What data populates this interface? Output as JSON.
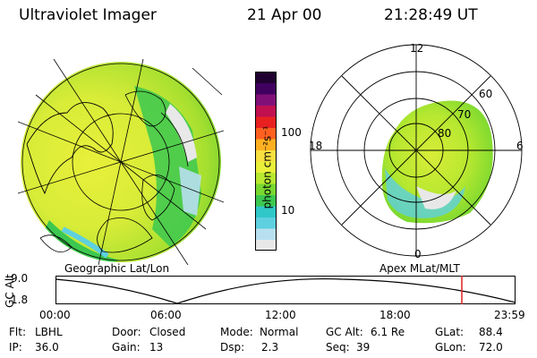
{
  "header": {
    "instrument": "Ultraviolet Imager",
    "date": "21 Apr 00",
    "time": "21:28:49 UT"
  },
  "colorbar": {
    "unit_label": "photon cm⁻²s⁻¹",
    "ticks": [
      {
        "value": 100,
        "label": "100"
      },
      {
        "value": 10,
        "label": "10"
      }
    ],
    "scale": "log",
    "colors": [
      "#e8e8e8",
      "#b8dff0",
      "#5ed0e0",
      "#30c8c8",
      "#3cc850",
      "#78d830",
      "#b8e830",
      "#e8f03a",
      "#f8e040",
      "#ffb020",
      "#ff6020",
      "#e82020",
      "#c01050",
      "#801078",
      "#400060",
      "#200030"
    ]
  },
  "left_map": {
    "projection_label": "Geographic Lat/Lon"
  },
  "right_map": {
    "projection_label": "Apex MLat/MLT",
    "mlt_labels": {
      "top": "12",
      "right": "6",
      "bottom": "0",
      "left": "18"
    },
    "lat_labels": [
      "60",
      "70",
      "80"
    ]
  },
  "timeline": {
    "axis_label": "GC Alt",
    "y_ticks": [
      "9.0",
      "1.8"
    ],
    "x_ticks": [
      "00:00",
      "06:00",
      "12:00",
      "18:00",
      "23:59"
    ],
    "current_time_marker": "21:28",
    "marker_color": "#e02020"
  },
  "info": {
    "filter_label": "Flt:",
    "filter_value": "LBHL",
    "door_label": "Door:",
    "door_value": "Closed",
    "mode_label": "Mode:",
    "mode_value": "Normal",
    "gcalt_label": "GC Alt:",
    "gcalt_value": "6.1 Re",
    "glat_label": "GLat:",
    "glat_value": "88.4",
    "ip_label": "IP:",
    "ip_value": "36.0",
    "gain_label": "Gain:",
    "gain_value": "13",
    "dsp_label": "Dsp:",
    "dsp_value": "2.3",
    "seq_label": "Seq:",
    "seq_value": "39",
    "glon_label": "GLon:",
    "glon_value": "72.0"
  }
}
